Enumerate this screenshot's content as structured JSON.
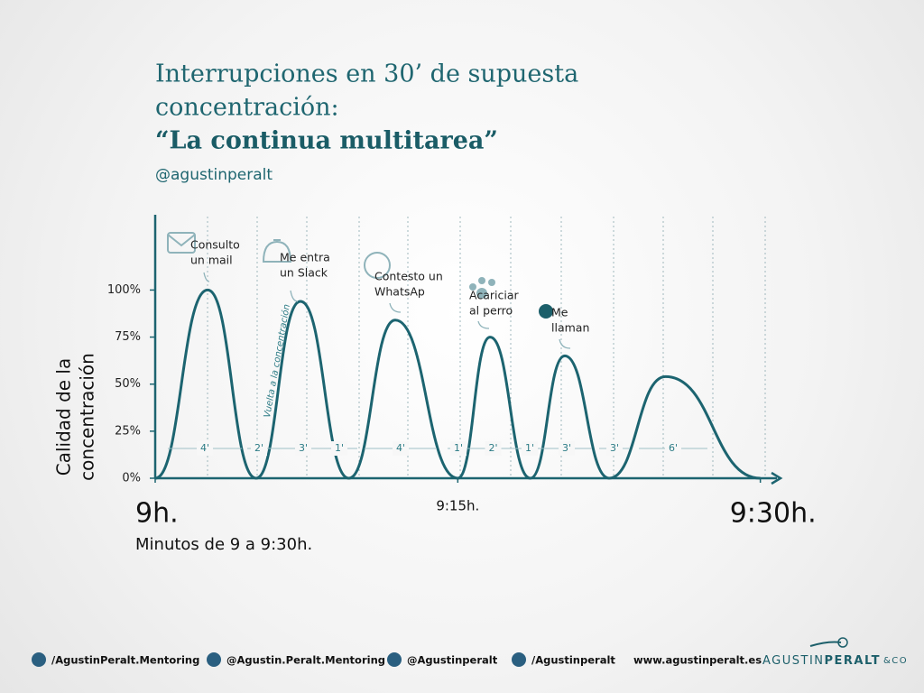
{
  "title": [
    "Interrupciones en 30’ de supuesta",
    "concentración:"
  ],
  "headline": "“La continua multitarea”",
  "author": "@agustinperalt",
  "chart_data": {
    "type": "line",
    "ylabel": [
      "Calidad de la",
      "concentración"
    ],
    "xlabel": "Minutos de 9 a 9:30h.",
    "x": [
      0,
      2.6,
      5.0,
      7.2,
      9.6,
      11.9,
      15.0,
      16.6,
      18.6,
      20.3,
      22.5,
      25.3,
      30.0
    ],
    "series": [
      {
        "color": "#1c6470",
        "values": [
          0,
          100,
          0,
          94,
          0,
          84,
          0,
          75,
          0,
          65,
          0,
          54,
          0
        ]
      }
    ],
    "xlim": [
      0,
      31
    ],
    "ylim": [
      0,
      140
    ],
    "xticks": [
      {
        "value": 0,
        "label": "9h."
      },
      {
        "value": 15,
        "label": "9:15h."
      },
      {
        "value": 30,
        "label": "9:30h."
      }
    ],
    "yticks": [
      {
        "value": 0,
        "label": "0%"
      },
      {
        "value": 25,
        "label": "25%"
      },
      {
        "value": 50,
        "label": "50%"
      },
      {
        "value": 75,
        "label": "75%"
      },
      {
        "value": 100,
        "label": "100%"
      }
    ],
    "annotations": [
      [
        "Consulto",
        "un mail"
      ],
      [
        "Me entra",
        "un Slack"
      ],
      [
        "Contesto un",
        "WhatsAp"
      ],
      [
        "Acariciar",
        "al perro"
      ],
      [
        "Me",
        "llaman"
      ]
    ],
    "rotated_note": "Vuelta a la concentración",
    "durations": [
      "4'",
      "2'",
      "3'",
      "1'",
      "4'",
      "1'",
      "2'",
      "1'",
      "3'",
      "3'",
      "6'"
    ]
  },
  "footer": {
    "links": [
      "/AgustinPeralt.Mentoring",
      "@Agustin.Peralt.Mentoring",
      "@Agustinperalt",
      "/Agustinperalt",
      "www.agustinperalt.es"
    ],
    "logo": [
      "AGUSTIN",
      "PERALT",
      "&CO"
    ]
  }
}
